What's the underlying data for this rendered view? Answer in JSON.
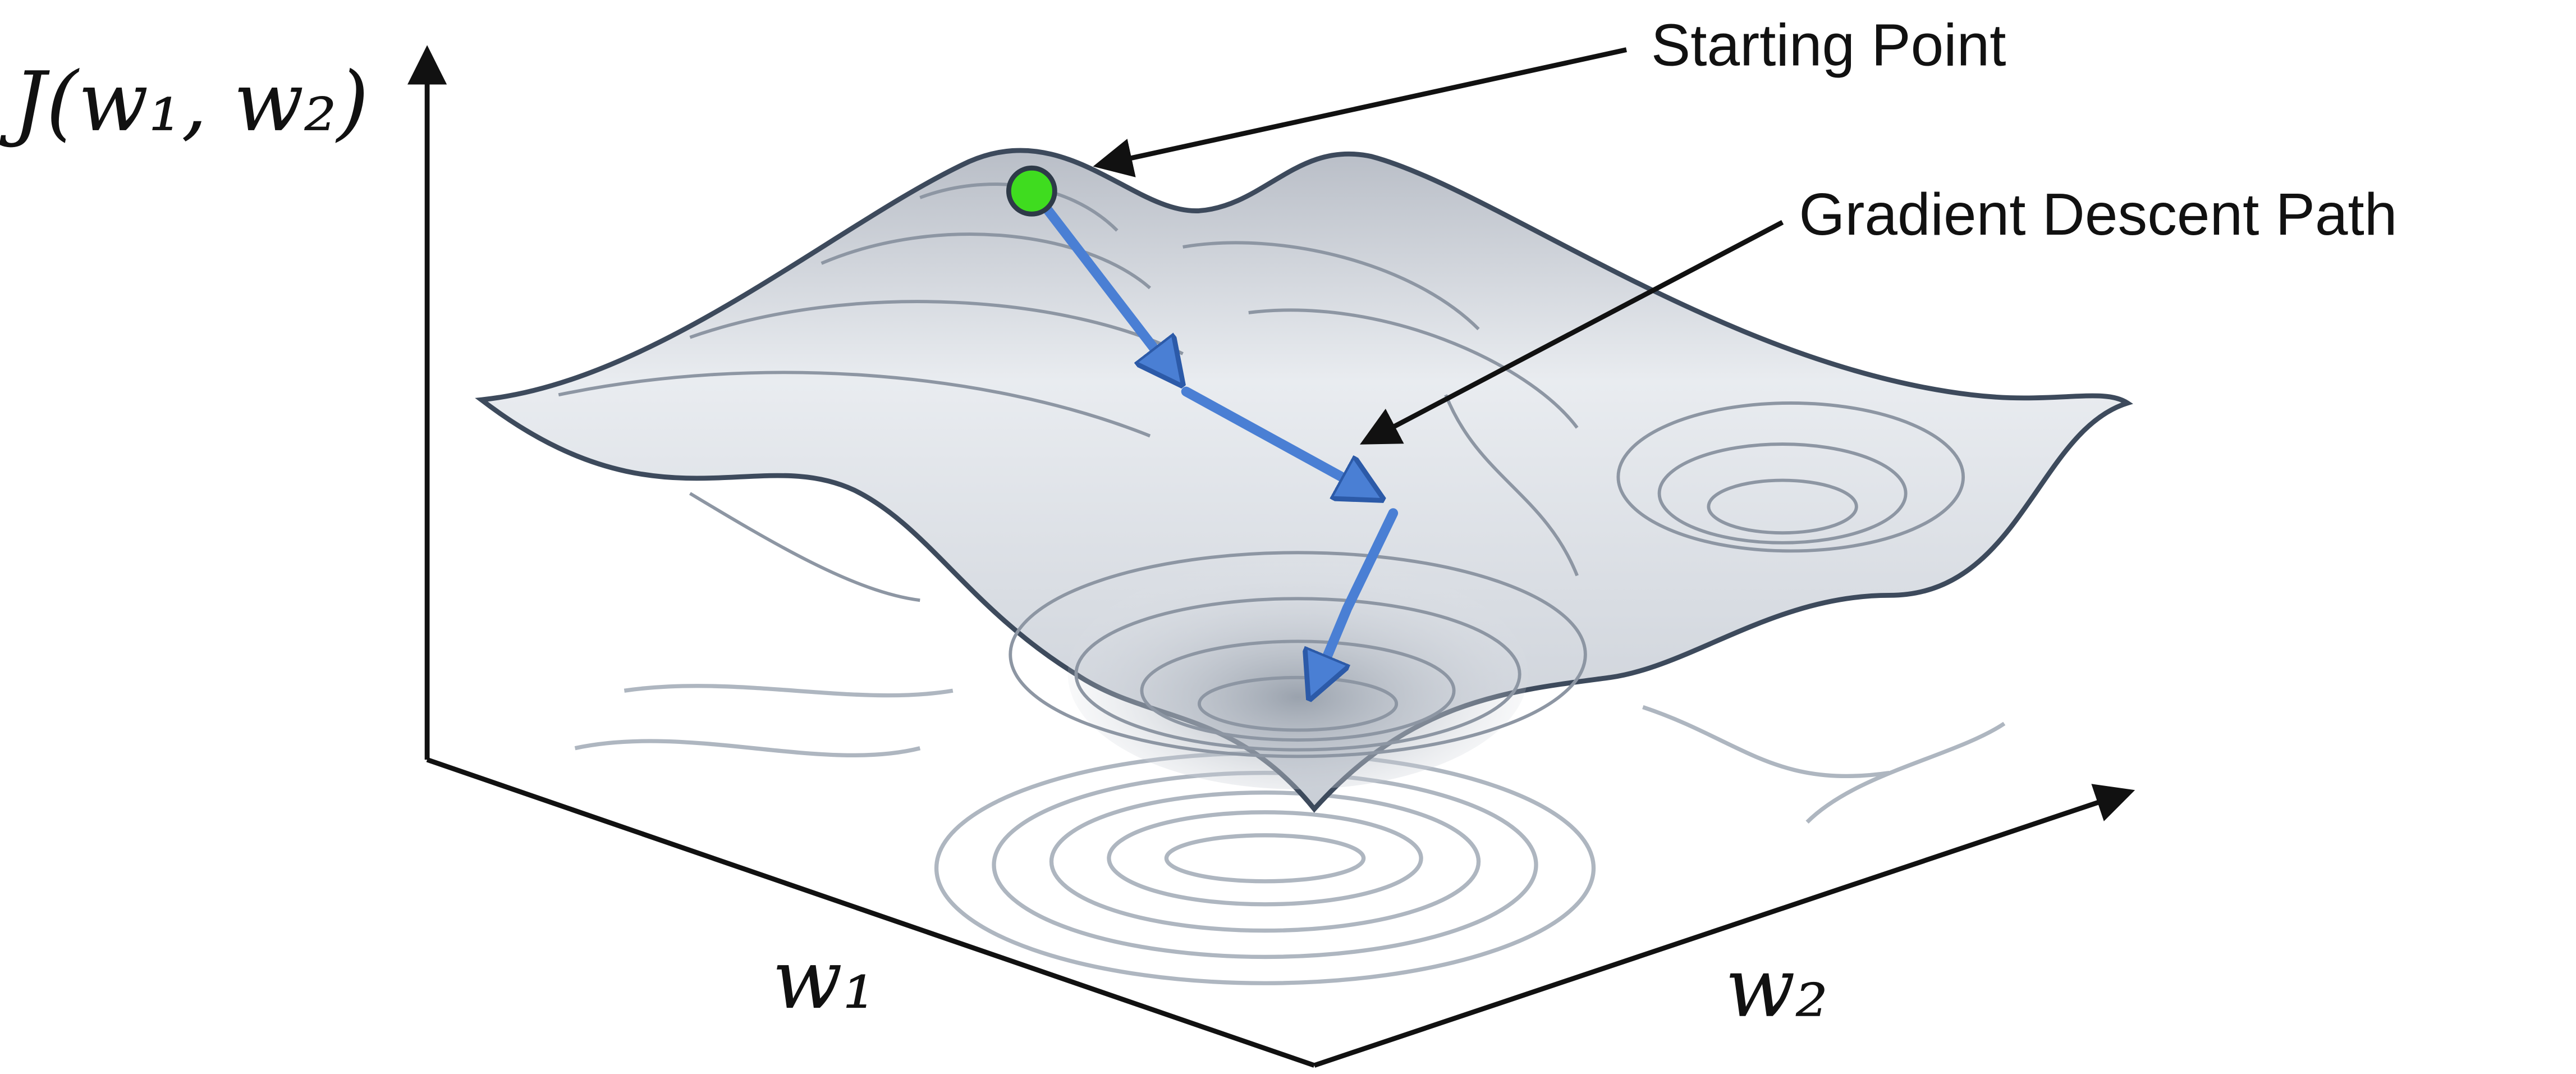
{
  "axes": {
    "z_label": "J(w₁, w₂)",
    "x_label": "w₁",
    "y_label": "w₂"
  },
  "annotations": {
    "start": "Starting Point",
    "path": "Gradient Descent Path"
  }
}
